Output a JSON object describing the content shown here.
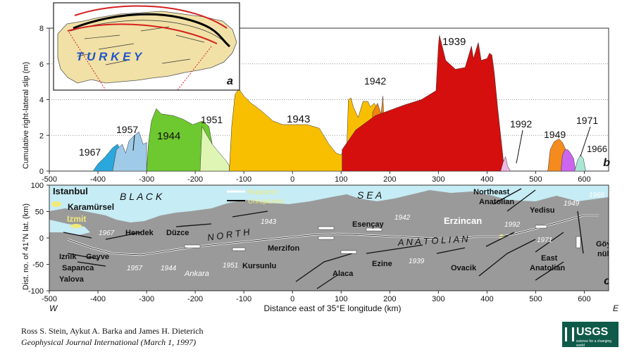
{
  "chart_data": [
    {
      "type": "area",
      "panel": "b",
      "ylabel": "Cumulative right-lateral slip (m)",
      "xlim": [
        -500,
        650
      ],
      "ylim": [
        0,
        8
      ],
      "x_ticks": [
        "-500",
        "-400",
        "-300",
        "-200",
        "-100",
        "0",
        "100",
        "200",
        "300",
        "400",
        "500",
        "600"
      ],
      "y_ticks": [
        "0",
        "2",
        "4",
        "6",
        "8"
      ],
      "grid": "horizontal dotted",
      "series": [
        {
          "name": "1967",
          "color": "#2aa7dd",
          "points": [
            [
              -410,
              0
            ],
            [
              -400,
              0.4
            ],
            [
              -385,
              0.8
            ],
            [
              -370,
              1.3
            ],
            [
              -360,
              1.5
            ],
            [
              -345,
              0.8
            ],
            [
              -330,
              1.6
            ],
            [
              -320,
              1.9
            ],
            [
              -312,
              1.4
            ],
            [
              -312,
              0
            ]
          ]
        },
        {
          "name": "1957",
          "color": "#9fcbe8",
          "points": [
            [
              -370,
              0
            ],
            [
              -362,
              1.2
            ],
            [
              -350,
              1.5
            ],
            [
              -343,
              1.0
            ],
            [
              -336,
              1.7
            ],
            [
              -325,
              2.0
            ],
            [
              -316,
              2.2
            ],
            [
              -307,
              1.5
            ],
            [
              -300,
              1.6
            ],
            [
              -300,
              0
            ]
          ]
        },
        {
          "name": "1944",
          "color": "#6ec82f",
          "points": [
            [
              -300,
              0
            ],
            [
              -296,
              1.6
            ],
            [
              -290,
              2.8
            ],
            [
              -280,
              3.5
            ],
            [
              -270,
              3.2
            ],
            [
              -245,
              3.1
            ],
            [
              -225,
              2.9
            ],
            [
              -205,
              2.6
            ],
            [
              -185,
              2.8
            ],
            [
              -172,
              2.5
            ],
            [
              -160,
              0.8
            ],
            [
              -145,
              0.6
            ],
            [
              -132,
              0.4
            ],
            [
              -132,
              0
            ]
          ]
        },
        {
          "name": "1951",
          "color": "#def5b4",
          "points": [
            [
              -190,
              0
            ],
            [
              -186,
              2.5
            ],
            [
              -178,
              2.1
            ],
            [
              -165,
              1.5
            ],
            [
              -150,
              1.0
            ],
            [
              -137,
              0.6
            ],
            [
              -130,
              0.3
            ],
            [
              -130,
              0
            ]
          ]
        },
        {
          "name": "1943",
          "color": "#f8bf00",
          "points": [
            [
              -130,
              0
            ],
            [
              -125,
              2.5
            ],
            [
              -118,
              4.3
            ],
            [
              -110,
              4.6
            ],
            [
              -100,
              4.2
            ],
            [
              -85,
              3.8
            ],
            [
              -65,
              3.4
            ],
            [
              -40,
              2.8
            ],
            [
              -20,
              2.6
            ],
            [
              30,
              2.6
            ],
            [
              55,
              2.4
            ],
            [
              75,
              1.5
            ],
            [
              90,
              1.0
            ],
            [
              100,
              0.9
            ],
            [
              112,
              1.6
            ],
            [
              115,
              4.0
            ],
            [
              120,
              4.1
            ],
            [
              125,
              3.6
            ],
            [
              135,
              3.0
            ],
            [
              145,
              3.9
            ],
            [
              155,
              3.9
            ],
            [
              160,
              3.6
            ],
            [
              168,
              3.8
            ],
            [
              175,
              3.5
            ],
            [
              175,
              0
            ]
          ]
        },
        {
          "name": "1942",
          "color": "#f3850f",
          "points": [
            [
              162,
              0
            ],
            [
              165,
              3.3
            ],
            [
              175,
              3.8
            ],
            [
              182,
              3.2
            ],
            [
              186,
              4.2
            ],
            [
              188,
              2.8
            ],
            [
              190,
              0
            ]
          ]
        },
        {
          "name": "1939",
          "color": "#d50e0e",
          "points": [
            [
              102,
              0
            ],
            [
              102,
              1.2
            ],
            [
              130,
              2.3
            ],
            [
              170,
              3.1
            ],
            [
              200,
              3.4
            ],
            [
              230,
              3.7
            ],
            [
              265,
              4.0
            ],
            [
              295,
              4.5
            ],
            [
              300,
              7.0
            ],
            [
              302,
              7.6
            ],
            [
              305,
              7.3
            ],
            [
              315,
              6.2
            ],
            [
              335,
              5.7
            ],
            [
              355,
              5.8
            ],
            [
              368,
              7.0
            ],
            [
              372,
              6.3
            ],
            [
              382,
              7.2
            ],
            [
              388,
              6.2
            ],
            [
              400,
              6.3
            ],
            [
              405,
              6.6
            ],
            [
              410,
              6.5
            ],
            [
              415,
              5.5
            ],
            [
              422,
              3.5
            ],
            [
              430,
              1.5
            ],
            [
              436,
              0
            ]
          ]
        },
        {
          "name": "1992",
          "color": "#f0b8e6",
          "points": [
            [
              428,
              0
            ],
            [
              433,
              0.5
            ],
            [
              438,
              0.8
            ],
            [
              442,
              0.3
            ],
            [
              448,
              0
            ]
          ]
        },
        {
          "name": "1949",
          "color": "#f58a1f",
          "points": [
            [
              525,
              0
            ],
            [
              530,
              1.2
            ],
            [
              538,
              1.65
            ],
            [
              548,
              1.8
            ],
            [
              555,
              1.6
            ],
            [
              565,
              1.0
            ],
            [
              570,
              0.6
            ],
            [
              570,
              0
            ]
          ]
        },
        {
          "name": "1971",
          "color": "#cc66ee",
          "points": [
            [
              552,
              0
            ],
            [
              555,
              0.9
            ],
            [
              560,
              1.2
            ],
            [
              566,
              1.2
            ],
            [
              572,
              1.0
            ],
            [
              578,
              0.7
            ],
            [
              582,
              0
            ]
          ]
        },
        {
          "name": "1966",
          "color": "#a8e6d5",
          "points": [
            [
              580,
              0
            ],
            [
              586,
              0.6
            ],
            [
              592,
              0.9
            ],
            [
              598,
              0.7
            ],
            [
              603,
              0
            ]
          ]
        }
      ],
      "annotations": [
        "1967",
        "1957",
        "1944",
        "1951",
        "1943",
        "1942",
        "1939",
        "1992",
        "1949",
        "1971",
        "1966"
      ],
      "panel_label": "b"
    },
    {
      "type": "map",
      "panel": "c",
      "ylabel": "Dist. no. of 41°N lat. (km)",
      "xlabel": "Distance east of 35°E longitude (km)",
      "xlim": [
        -500,
        650
      ],
      "ylim": [
        -100,
        100
      ],
      "x_ticks": [
        "-500",
        "-400",
        "-300",
        "-200",
        "-100",
        "0",
        "100",
        "200",
        "300",
        "400",
        "500",
        "600"
      ],
      "y_ticks": [
        "100",
        "50",
        "0",
        "-50",
        "-100"
      ],
      "x_end_labels": [
        "W",
        "E"
      ],
      "legend": [
        "Ruptured",
        "Unruptured"
      ],
      "sea_labels": [
        "B L A C K",
        "S E A"
      ],
      "fault_labels": [
        "N O R T H",
        "A N A T O L I A N"
      ],
      "place_labels": [
        "Istanbul",
        "Karamürsel",
        "Izmit",
        "Hendek",
        "Düzce",
        "Iznik",
        "Geyve",
        "Sapanca",
        "Yalova",
        "Ankara",
        "Kursunlu",
        "Merzifon",
        "Alaca",
        "Ezine",
        "Esençay",
        "Ovacik",
        "Erzincan",
        "Northeast Anatolian",
        "Yedisu",
        "East Anatolian",
        "Göy-nük"
      ],
      "year_labels": [
        "1967",
        "1957",
        "1944",
        "1951",
        "1943",
        "1942",
        "1939",
        "1992",
        "1949",
        "1966",
        "1971"
      ],
      "panel_label": "c"
    }
  ],
  "inset": {
    "country_label": "T U R K E Y",
    "panel_label": "a"
  },
  "credits": {
    "authors": "Ross S. Stein, Aykut A. Barka and James H. Dieterich",
    "journal": "Geophysical Journal International (March 1, 1997)"
  },
  "logo": {
    "text": "USGS",
    "tagline": "science for a changing world"
  }
}
